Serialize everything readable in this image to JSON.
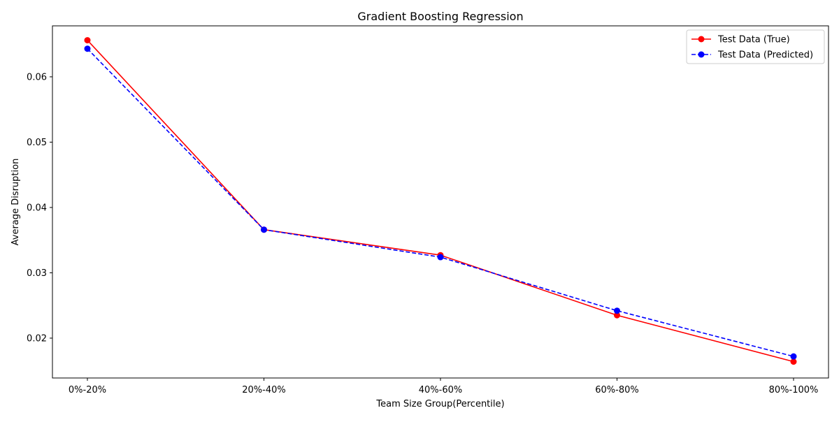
{
  "chart_data": {
    "type": "line",
    "title": "Gradient Boosting Regression",
    "xlabel": "Team Size Group(Percentile)",
    "ylabel": "Average Disruption",
    "categories": [
      "0%-20%",
      "20%-40%",
      "40%-60%",
      "60%-80%",
      "80%-100%"
    ],
    "ylim": [
      0.0139,
      0.0678
    ],
    "yticks": [
      0.02,
      0.03,
      0.04,
      0.05,
      0.06
    ],
    "ytick_labels": [
      "0.02",
      "0.03",
      "0.04",
      "0.05",
      "0.06"
    ],
    "grid": false,
    "legend_position": "top-right",
    "series": [
      {
        "name": "Test Data (True)",
        "values": [
          0.0656,
          0.0366,
          0.0327,
          0.0235,
          0.0164
        ],
        "color": "#ff0000",
        "line_style": "solid",
        "marker": "circle"
      },
      {
        "name": "Test Data (Predicted)",
        "values": [
          0.0643,
          0.0366,
          0.0324,
          0.0242,
          0.0172
        ],
        "color": "#0000ff",
        "line_style": "dashed",
        "marker": "circle"
      }
    ]
  }
}
